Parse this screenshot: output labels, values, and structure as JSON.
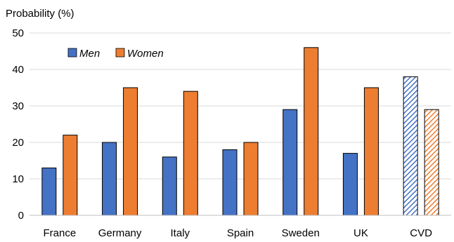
{
  "chart_data": {
    "type": "bar",
    "ylabel": "Probability (%)",
    "xlabel": "",
    "ylim": [
      0,
      50
    ],
    "yticks": [
      0,
      10,
      20,
      30,
      40,
      50
    ],
    "grid": "horizontal",
    "legend_position": "top-left",
    "categories": [
      "France",
      "Germany",
      "Italy",
      "Spain",
      "Sweden",
      "UK",
      "CVD"
    ],
    "hatched_categories": [
      "CVD"
    ],
    "series": [
      {
        "name": "Men",
        "color": "#4472C4",
        "values": [
          13,
          20,
          16,
          18,
          29,
          17,
          38
        ]
      },
      {
        "name": "Women",
        "color": "#ED7D31",
        "values": [
          22,
          35,
          34,
          20,
          46,
          35,
          29
        ]
      }
    ]
  }
}
